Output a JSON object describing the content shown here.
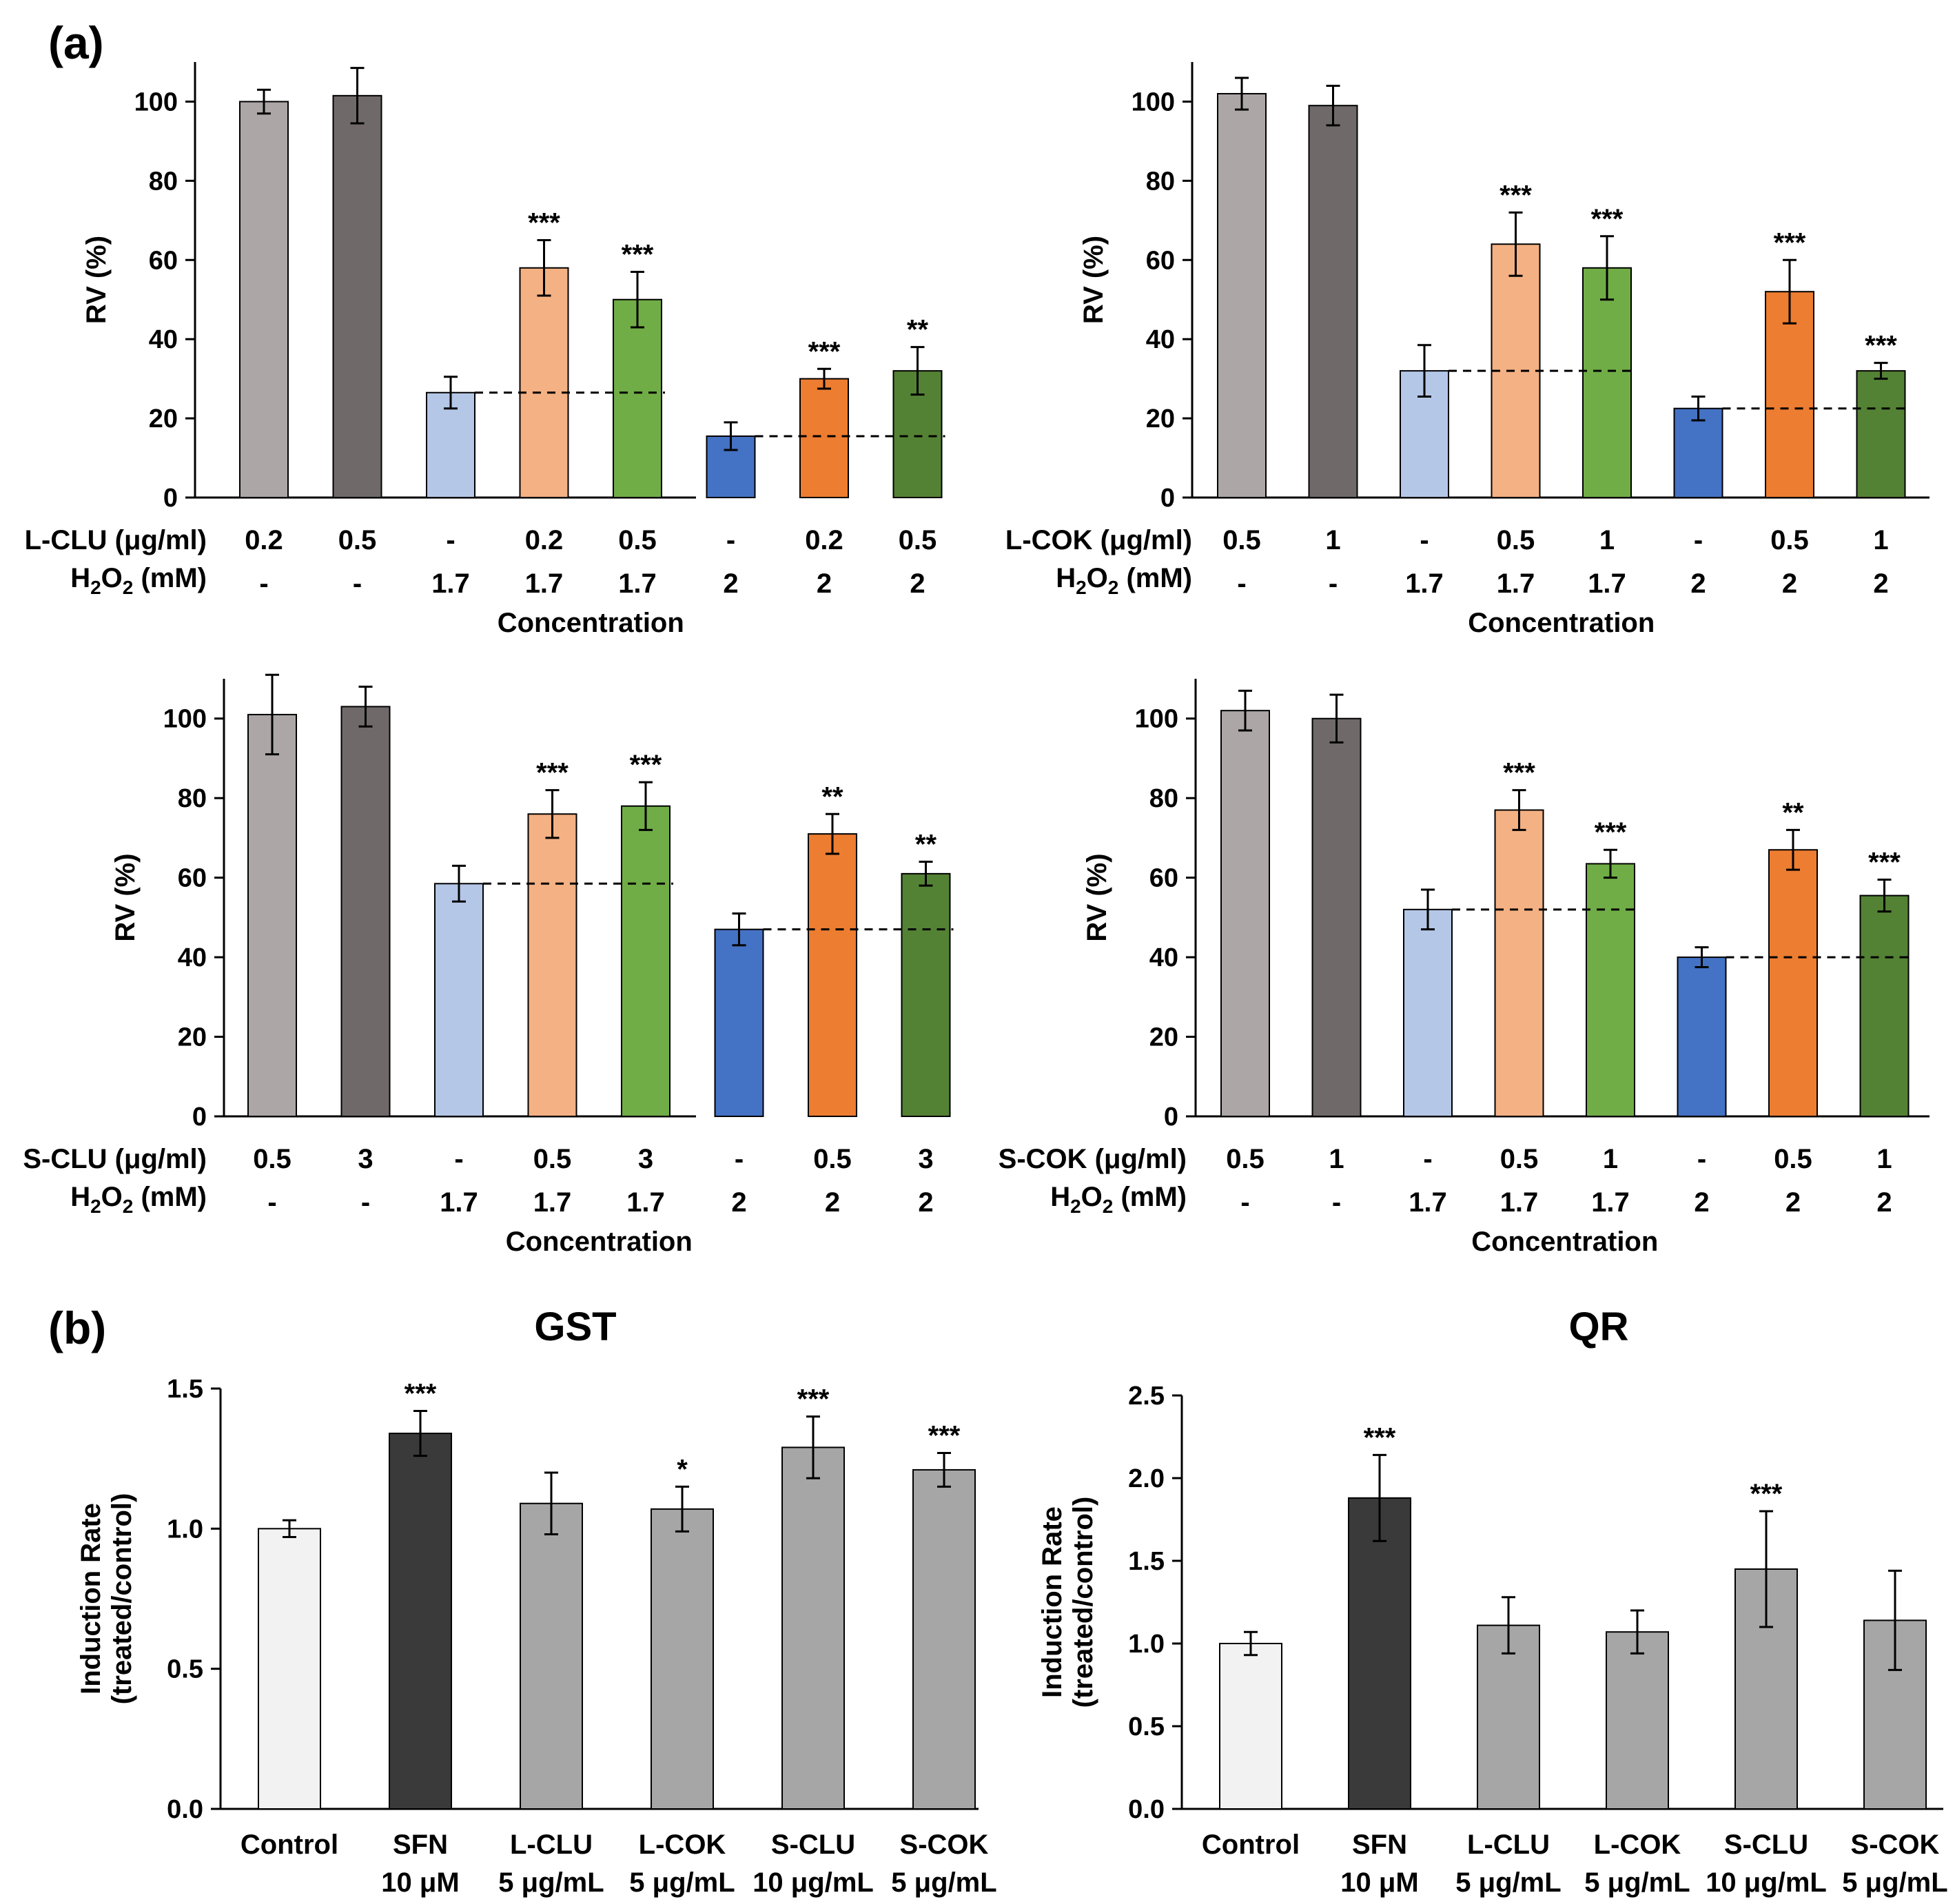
{
  "panel_labels": {
    "a": "(a)",
    "b": "(b)"
  },
  "colors": {
    "light_gray": "#aca7a6",
    "dark_gray": "#6f6a69",
    "light_blue": "#b4c7e7",
    "light_orange": "#f4b183",
    "light_green": "#70ad47",
    "blue": "#4472c4",
    "orange": "#ed7d31",
    "dark_green": "#548235",
    "control_white": "#f2f2f2",
    "sfn_black": "#3a3a3a",
    "sample_gray": "#a6a6a6"
  },
  "chart_data": [
    {
      "id": "a1",
      "type": "bar",
      "ylabel": "RV (%)",
      "xlabel": "Concentration",
      "ylim": [
        0,
        110
      ],
      "yticks": [
        "0",
        "20",
        "40",
        "60",
        "80",
        "100"
      ],
      "row_labels": [
        "L-CLU (μg/ml)",
        "H2O2 (mM)"
      ],
      "rows": [
        [
          "0.2",
          "0.5",
          "-",
          "0.2",
          "0.5",
          "-",
          "0.2",
          "0.5"
        ],
        [
          "-",
          "-",
          "1.7",
          "1.7",
          "1.7",
          "2",
          "2",
          "2"
        ]
      ],
      "values": [
        100,
        101.5,
        26.5,
        58,
        50,
        15.5,
        30,
        32
      ],
      "errors": [
        3,
        7,
        4,
        7,
        7,
        3.5,
        2.5,
        6
      ],
      "significance": [
        "",
        "",
        "",
        "***",
        "***",
        "",
        "***",
        "**"
      ],
      "colors": [
        "light_gray",
        "dark_gray",
        "light_blue",
        "light_orange",
        "light_green",
        "blue",
        "orange",
        "dark_green"
      ],
      "dashed_baselines": [
        {
          "from": 2,
          "to": 4,
          "value": 26.5
        },
        {
          "from": 5,
          "to": 7,
          "value": 15.5
        }
      ]
    },
    {
      "id": "a2",
      "type": "bar",
      "ylabel": "RV (%)",
      "xlabel": "Concentration",
      "ylim": [
        0,
        110
      ],
      "yticks": [
        "0",
        "20",
        "40",
        "60",
        "80",
        "100"
      ],
      "row_labels": [
        "L-COK (μg/ml)",
        "H2O2 (mM)"
      ],
      "rows": [
        [
          "0.5",
          "1",
          "-",
          "0.5",
          "1",
          "-",
          "0.5",
          "1"
        ],
        [
          "-",
          "-",
          "1.7",
          "1.7",
          "1.7",
          "2",
          "2",
          "2"
        ]
      ],
      "values": [
        102,
        99,
        32,
        64,
        58,
        22.5,
        52,
        32
      ],
      "errors": [
        4,
        5,
        6.5,
        8,
        8,
        3,
        8,
        2
      ],
      "significance": [
        "",
        "",
        "",
        "***",
        "***",
        "",
        "***",
        "***"
      ],
      "colors": [
        "light_gray",
        "dark_gray",
        "light_blue",
        "light_orange",
        "light_green",
        "blue",
        "orange",
        "dark_green"
      ],
      "dashed_baselines": [
        {
          "from": 2,
          "to": 4,
          "value": 32
        },
        {
          "from": 5,
          "to": 7,
          "value": 22.5
        }
      ]
    },
    {
      "id": "a3",
      "type": "bar",
      "ylabel": "RV (%)",
      "xlabel": "Concentration",
      "ylim": [
        0,
        110
      ],
      "yticks": [
        "0",
        "20",
        "40",
        "60",
        "80",
        "100"
      ],
      "row_labels": [
        "S-CLU (μg/ml)",
        "H2O2 (mM)"
      ],
      "rows": [
        [
          "0.5",
          "3",
          "-",
          "0.5",
          "3",
          "-",
          "0.5",
          "3"
        ],
        [
          "-",
          "-",
          "1.7",
          "1.7",
          "1.7",
          "2",
          "2",
          "2"
        ]
      ],
      "values": [
        101,
        103,
        58.5,
        76,
        78,
        47,
        71,
        61
      ],
      "errors": [
        10,
        5,
        4.5,
        6,
        6,
        4,
        5,
        3
      ],
      "significance": [
        "",
        "",
        "",
        "***",
        "***",
        "",
        "**",
        "**"
      ],
      "colors": [
        "light_gray",
        "dark_gray",
        "light_blue",
        "light_orange",
        "light_green",
        "blue",
        "orange",
        "dark_green"
      ],
      "dashed_baselines": [
        {
          "from": 2,
          "to": 4,
          "value": 58.5
        },
        {
          "from": 5,
          "to": 7,
          "value": 47
        }
      ]
    },
    {
      "id": "a4",
      "type": "bar",
      "ylabel": "RV (%)",
      "xlabel": "Concentration",
      "ylim": [
        0,
        110
      ],
      "yticks": [
        "0",
        "20",
        "40",
        "60",
        "80",
        "100"
      ],
      "row_labels": [
        "S-COK (μg/ml)",
        "H2O2 (mM)"
      ],
      "rows": [
        [
          "0.5",
          "1",
          "-",
          "0.5",
          "1",
          "-",
          "0.5",
          "1"
        ],
        [
          "-",
          "-",
          "1.7",
          "1.7",
          "1.7",
          "2",
          "2",
          "2"
        ]
      ],
      "values": [
        102,
        100,
        52,
        77,
        63.5,
        40,
        67,
        55.5
      ],
      "errors": [
        5,
        6,
        5,
        5,
        3.5,
        2.5,
        5,
        4
      ],
      "significance": [
        "",
        "",
        "",
        "***",
        "***",
        "",
        "**",
        "***"
      ],
      "colors": [
        "light_gray",
        "dark_gray",
        "light_blue",
        "light_orange",
        "light_green",
        "blue",
        "orange",
        "dark_green"
      ],
      "dashed_baselines": [
        {
          "from": 2,
          "to": 4,
          "value": 52
        },
        {
          "from": 5,
          "to": 7,
          "value": 40
        }
      ]
    },
    {
      "id": "b1",
      "type": "bar",
      "title": "GST",
      "ylabel": "Induction Rate",
      "ylabel2": "(treated/control)",
      "ylim": [
        0,
        1.5
      ],
      "yticks": [
        "0.0",
        "0.5",
        "1.0",
        "1.5"
      ],
      "categories": [
        "Control",
        "SFN",
        "L-CLU",
        "L-COK",
        "S-CLU",
        "S-COK"
      ],
      "category_sub": [
        "",
        "10 μM",
        "5 μg/mL",
        "5 μg/mL",
        "10 μg/mL",
        "5 μg/mL"
      ],
      "values": [
        1.0,
        1.34,
        1.09,
        1.07,
        1.29,
        1.21
      ],
      "errors": [
        0.03,
        0.08,
        0.11,
        0.08,
        0.11,
        0.06
      ],
      "significance": [
        "",
        "***",
        "",
        "*",
        "***",
        "***"
      ],
      "colors": [
        "control_white",
        "sfn_black",
        "sample_gray",
        "sample_gray",
        "sample_gray",
        "sample_gray"
      ]
    },
    {
      "id": "b2",
      "type": "bar",
      "title": "QR",
      "ylabel": "Induction Rate",
      "ylabel2": "(treated/control)",
      "ylim": [
        0,
        2.5
      ],
      "yticks": [
        "0.0",
        "0.5",
        "1.0",
        "1.5",
        "2.0",
        "2.5"
      ],
      "categories": [
        "Control",
        "SFN",
        "L-CLU",
        "L-COK",
        "S-CLU",
        "S-COK"
      ],
      "category_sub": [
        "",
        "10 μM",
        "5 μg/mL",
        "5 μg/mL",
        "10 μg/mL",
        "5 μg/mL"
      ],
      "values": [
        1.0,
        1.88,
        1.11,
        1.07,
        1.45,
        1.14
      ],
      "errors": [
        0.07,
        0.26,
        0.17,
        0.13,
        0.35,
        0.3
      ],
      "significance": [
        "",
        "***",
        "",
        "",
        "***",
        ""
      ],
      "colors": [
        "control_white",
        "sfn_black",
        "sample_gray",
        "sample_gray",
        "sample_gray",
        "sample_gray"
      ]
    }
  ]
}
